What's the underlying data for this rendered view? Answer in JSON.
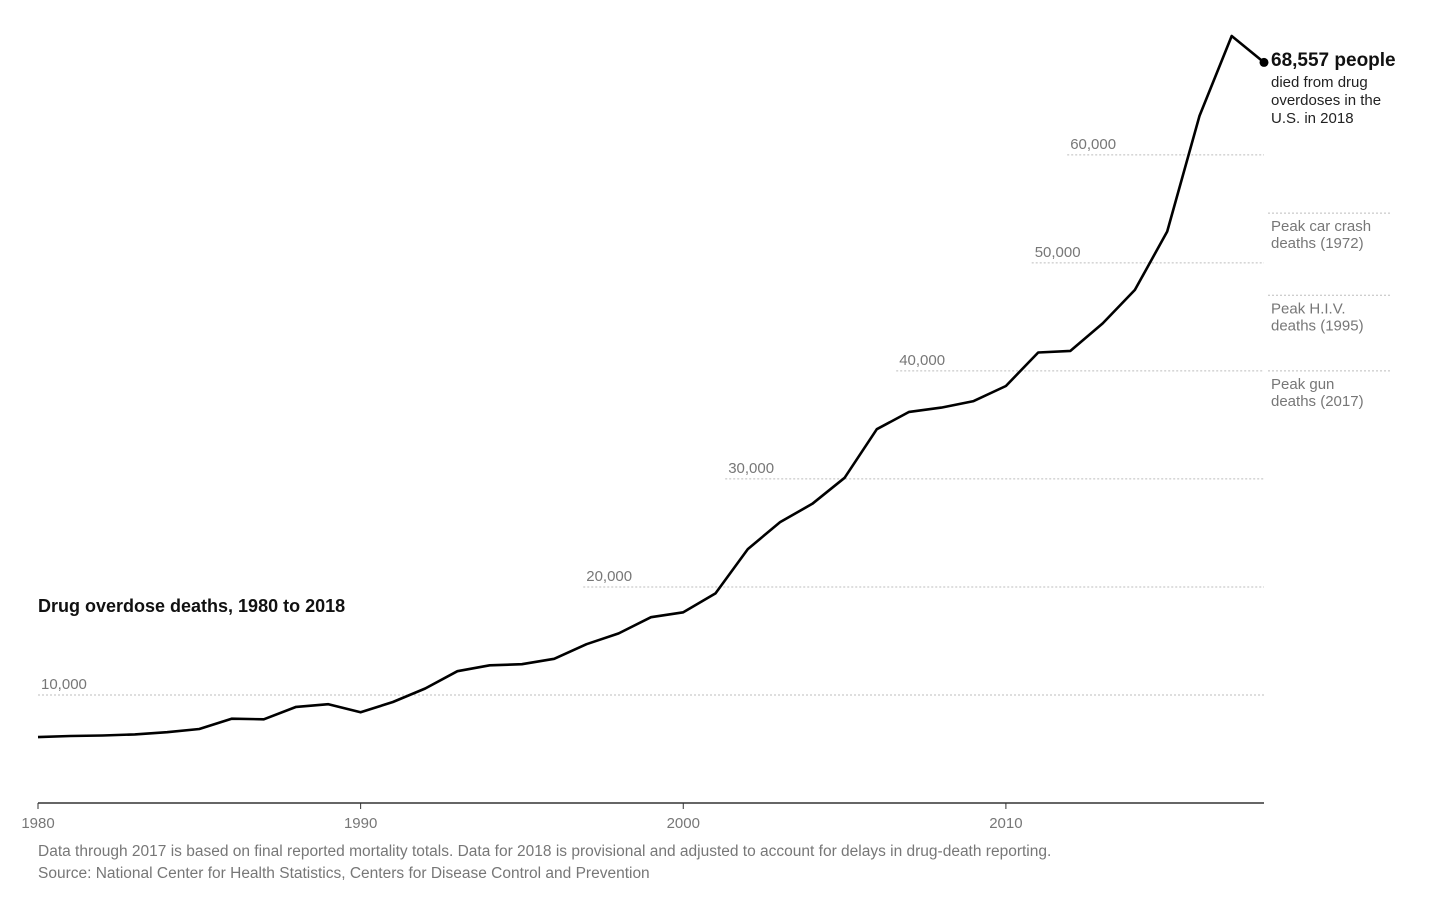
{
  "chart_data": {
    "type": "line",
    "title": "Drug overdose deaths, 1980 to 2018",
    "x": [
      1980,
      1981,
      1982,
      1983,
      1984,
      1985,
      1986,
      1987,
      1988,
      1989,
      1990,
      1991,
      1992,
      1993,
      1994,
      1995,
      1996,
      1997,
      1998,
      1999,
      2000,
      2001,
      2002,
      2003,
      2004,
      2005,
      2006,
      2007,
      2008,
      2009,
      2010,
      2011,
      2012,
      2013,
      2014,
      2015,
      2016,
      2017,
      2018
    ],
    "series": [
      {
        "values": [
          6100,
          6200,
          6250,
          6350,
          6550,
          6850,
          7800,
          7750,
          8900,
          9150,
          8400,
          9350,
          10600,
          12200,
          12750,
          12850,
          13350,
          14700,
          15700,
          17200,
          17650,
          19400,
          23500,
          26000,
          27700,
          30100,
          34600,
          36200,
          36600,
          37200,
          38600,
          41700,
          41850,
          44400,
          47500,
          52900,
          63600,
          71000,
          68557
        ]
      }
    ],
    "xlim": [
      1980,
      2018
    ],
    "ylim": [
      0,
      71000
    ],
    "x_ticks": [
      "1980",
      "1990",
      "2000",
      "2010"
    ],
    "y_gridlines": [
      {
        "value": 10000,
        "label": "10,000",
        "label_start_year": 1980
      },
      {
        "value": 20000,
        "label": "20,000",
        "label_start_year": 1996.9
      },
      {
        "value": 30000,
        "label": "30,000",
        "label_start_year": 2001.3
      },
      {
        "value": 40000,
        "label": "40,000",
        "label_start_year": 2006.6
      },
      {
        "value": 50000,
        "label": "50,000",
        "label_start_year": 2010.8
      },
      {
        "value": 60000,
        "label": "60,000",
        "label_start_year": 2011.9
      }
    ],
    "reference_lines": [
      {
        "value": 54600,
        "label_lines": [
          "Peak car crash",
          "deaths (1972)"
        ]
      },
      {
        "value": 47000,
        "label_lines": [
          "Peak H.I.V.",
          "deaths (1995)"
        ]
      },
      {
        "value": 40000,
        "label_lines": [
          "Peak gun",
          "deaths (2017)"
        ]
      }
    ],
    "callout": {
      "value_text": "68,557 people",
      "lines": [
        "died from drug",
        "overdoses in the",
        "U.S. in 2018"
      ]
    },
    "grid": true,
    "legend": "none"
  },
  "notes": [
    "Data through 2017 is based on final reported mortality totals. Data for 2018 is provisional and adjusted to account for delays in drug-death reporting.",
    "Source: National Center for Health Statistics, Centers for Disease Control and Prevention"
  ],
  "colors": {
    "line": "#000000",
    "grid": "#bdbdbd",
    "muted_text": "#777777"
  }
}
